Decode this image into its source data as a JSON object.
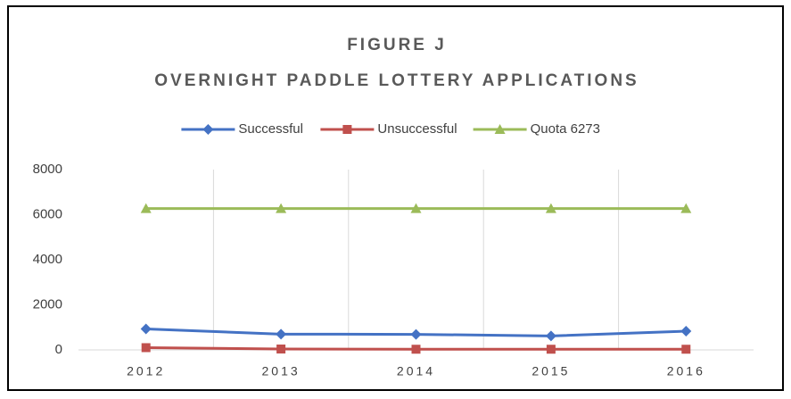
{
  "chart_data": {
    "type": "line",
    "title": "FIGURE J",
    "subtitle": "OVERNIGHT PADDLE LOTTERY APPLICATIONS",
    "categories": [
      "2012",
      "2013",
      "2014",
      "2015",
      "2016"
    ],
    "series": [
      {
        "name": "Successful",
        "color": "#4472c4",
        "marker": "diamond",
        "values": [
          930,
          700,
          690,
          620,
          830
        ]
      },
      {
        "name": "Unsuccessful",
        "color": "#c0504d",
        "marker": "square",
        "values": [
          100,
          40,
          30,
          30,
          30
        ]
      },
      {
        "name": "Quota 6273",
        "color": "#9bbb59",
        "marker": "triangle",
        "values": [
          6273,
          6273,
          6273,
          6273,
          6273
        ]
      }
    ],
    "ylim": [
      0,
      8000
    ],
    "yticks": [
      0,
      2000,
      4000,
      6000,
      8000
    ],
    "grid": "vertical",
    "legend": "top"
  }
}
